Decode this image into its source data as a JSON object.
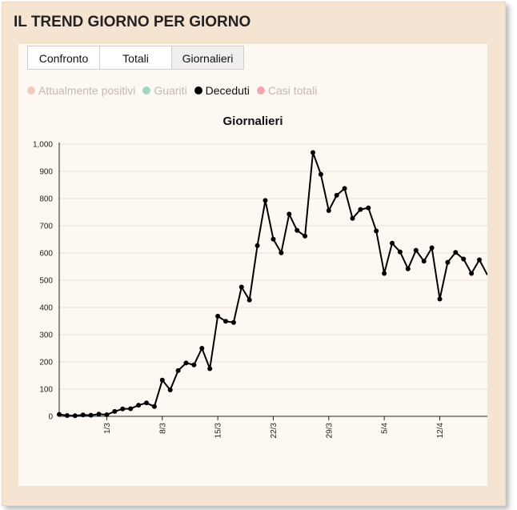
{
  "header": {
    "title": "IL TREND GIORNO PER GIORNO"
  },
  "tabs": [
    {
      "label": "Confronto",
      "active": false
    },
    {
      "label": "Totali",
      "active": false
    },
    {
      "label": "Giornalieri",
      "active": true
    }
  ],
  "legend": [
    {
      "label": "Attualmente positivi",
      "color": "#f2c9bd",
      "active": false
    },
    {
      "label": "Guariti",
      "color": "#9fd6c4",
      "active": false
    },
    {
      "label": "Deceduti",
      "color": "#000000",
      "active": true
    },
    {
      "label": "Casi totali",
      "color": "#f0a8ad",
      "active": false
    }
  ],
  "chart_data": {
    "type": "line",
    "title": "Giornalieri",
    "grid": true,
    "ylim": [
      0,
      1000
    ],
    "yticks": [
      0,
      100,
      200,
      300,
      400,
      500,
      600,
      700,
      800,
      900,
      1000
    ],
    "ytick_labels": [
      "0",
      "100",
      "200",
      "300",
      "400",
      "500",
      "600",
      "700",
      "800",
      "900",
      "1,000"
    ],
    "xlim": [
      "2020-02-24",
      "2020-04-17"
    ],
    "xticks": [
      "2020-03-01",
      "2020-03-08",
      "2020-03-15",
      "2020-03-22",
      "2020-03-29",
      "2020-04-05",
      "2020-04-12"
    ],
    "xtick_labels": [
      "1/3",
      "8/3",
      "15/3",
      "22/3",
      "29/3",
      "5/4",
      "12/4"
    ],
    "series": [
      {
        "color": "#000000",
        "x": [
          "2020-02-24",
          "2020-02-25",
          "2020-02-26",
          "2020-02-27",
          "2020-02-28",
          "2020-02-29",
          "2020-03-01",
          "2020-03-02",
          "2020-03-03",
          "2020-03-04",
          "2020-03-05",
          "2020-03-06",
          "2020-03-07",
          "2020-03-08",
          "2020-03-09",
          "2020-03-10",
          "2020-03-11",
          "2020-03-12",
          "2020-03-13",
          "2020-03-14",
          "2020-03-15",
          "2020-03-16",
          "2020-03-17",
          "2020-03-18",
          "2020-03-19",
          "2020-03-20",
          "2020-03-21",
          "2020-03-22",
          "2020-03-23",
          "2020-03-24",
          "2020-03-25",
          "2020-03-26",
          "2020-03-27",
          "2020-03-28",
          "2020-03-29",
          "2020-03-30",
          "2020-03-31",
          "2020-04-01",
          "2020-04-02",
          "2020-04-03",
          "2020-04-04",
          "2020-04-05",
          "2020-04-06",
          "2020-04-07",
          "2020-04-08",
          "2020-04-09",
          "2020-04-10",
          "2020-04-11",
          "2020-04-12",
          "2020-04-13",
          "2020-04-14",
          "2020-04-15",
          "2020-04-16",
          "2020-04-17"
        ],
        "values": [
          7,
          3,
          2,
          5,
          4,
          8,
          6,
          18,
          27,
          28,
          41,
          49,
          36,
          133,
          97,
          168,
          196,
          189,
          250,
          175,
          368,
          349,
          345,
          475,
          427,
          627,
          793,
          651,
          601,
          743,
          683,
          662,
          969,
          889,
          756,
          812,
          837,
          727,
          760,
          766,
          681,
          525,
          636,
          604,
          542,
          610,
          570,
          619,
          431,
          566,
          602,
          578,
          525,
          575
        ]
      }
    ],
    "x_continues_past_last": 520
  }
}
